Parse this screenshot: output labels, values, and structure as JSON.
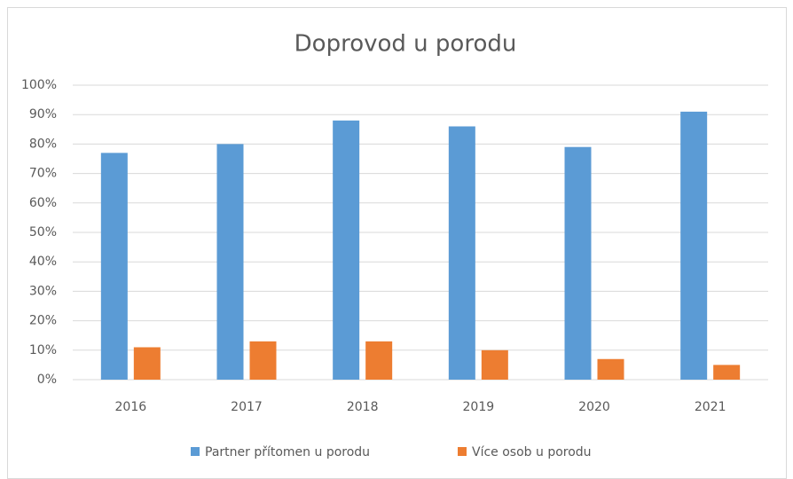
{
  "chart_data": {
    "type": "bar",
    "title": "Doprovod u porodu",
    "categories": [
      "2016",
      "2017",
      "2018",
      "2019",
      "2020",
      "2021"
    ],
    "series": [
      {
        "name": "Partner přítomen u porodu",
        "color": "#5b9bd5",
        "values": [
          77,
          80,
          88,
          86,
          79,
          91
        ]
      },
      {
        "name": "Více osob u porodu",
        "color": "#ed7d31",
        "values": [
          11,
          13,
          13,
          10,
          7,
          5
        ]
      }
    ],
    "ylim": [
      0,
      100
    ],
    "yticks": [
      {
        "value": 0,
        "label": "0%"
      },
      {
        "value": 10,
        "label": "10%"
      },
      {
        "value": 20,
        "label": "20%"
      },
      {
        "value": 30,
        "label": "30%"
      },
      {
        "value": 40,
        "label": "40%"
      },
      {
        "value": 50,
        "label": "50%"
      },
      {
        "value": 60,
        "label": "60%"
      },
      {
        "value": 70,
        "label": "70%"
      },
      {
        "value": 80,
        "label": "80%"
      },
      {
        "value": 90,
        "label": "90%"
      },
      {
        "value": 100,
        "label": "100%"
      }
    ],
    "grid": true,
    "legend": "bottom"
  }
}
